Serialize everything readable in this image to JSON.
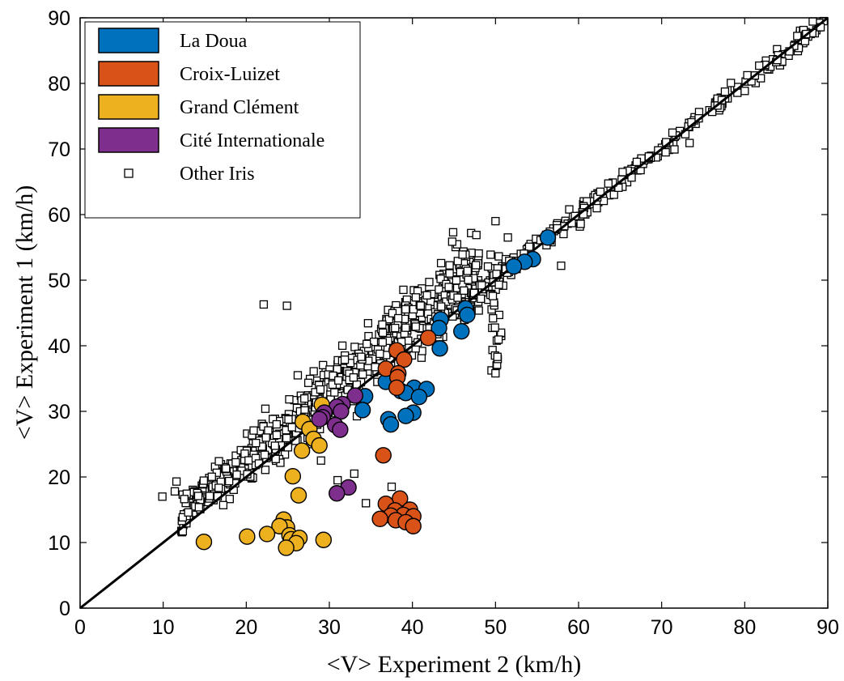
{
  "chart_data": {
    "type": "scatter",
    "title": "",
    "xlabel": "<V> Experiment 2 (km/h)",
    "ylabel": "<V> Experiment 1 (km/h)",
    "xlim": [
      0,
      90
    ],
    "ylim": [
      0,
      90
    ],
    "xticks": [
      0,
      10,
      20,
      30,
      40,
      50,
      60,
      70,
      80,
      90
    ],
    "yticks": [
      0,
      10,
      20,
      30,
      40,
      50,
      60,
      70,
      80,
      90
    ],
    "grid": false,
    "legend_position": "top-left",
    "identity_line": [
      [
        0,
        0
      ],
      [
        90,
        90
      ]
    ],
    "series": [
      {
        "name": "La Doua",
        "color": "#0072BD",
        "marker": "circle",
        "points": [
          [
            56.3,
            56.5
          ],
          [
            54.5,
            53.2
          ],
          [
            53.5,
            52.8
          ],
          [
            52.2,
            52.1
          ],
          [
            46.4,
            45.7
          ],
          [
            46.6,
            44.7
          ],
          [
            43.4,
            44.0
          ],
          [
            43.2,
            42.7
          ],
          [
            45.9,
            42.2
          ],
          [
            43.3,
            39.6
          ],
          [
            36.8,
            34.5
          ],
          [
            40.2,
            33.6
          ],
          [
            41.7,
            33.4
          ],
          [
            38.6,
            33.1
          ],
          [
            39.2,
            32.8
          ],
          [
            34.3,
            32.3
          ],
          [
            40.8,
            32.2
          ],
          [
            34.0,
            30.2
          ],
          [
            40.1,
            29.8
          ],
          [
            39.2,
            29.3
          ],
          [
            37.1,
            28.8
          ],
          [
            37.4,
            28.0
          ]
        ]
      },
      {
        "name": "Croix-Luizet",
        "color": "#D95319",
        "marker": "circle",
        "points": [
          [
            41.9,
            41.2
          ],
          [
            38.1,
            39.3
          ],
          [
            39.0,
            37.9
          ],
          [
            36.8,
            36.5
          ],
          [
            38.3,
            35.8
          ],
          [
            38.2,
            35.2
          ],
          [
            38.1,
            33.6
          ],
          [
            36.5,
            23.3
          ],
          [
            38.5,
            16.7
          ],
          [
            36.8,
            15.9
          ],
          [
            39.7,
            15.0
          ],
          [
            37.9,
            14.9
          ],
          [
            38.9,
            14.2
          ],
          [
            37.4,
            14.1
          ],
          [
            40.1,
            14.0
          ],
          [
            36.1,
            13.6
          ],
          [
            38.0,
            13.4
          ],
          [
            39.2,
            13.1
          ],
          [
            40.1,
            12.5
          ]
        ]
      },
      {
        "name": "Grand Clément",
        "color": "#EDB120",
        "marker": "circle",
        "points": [
          [
            29.1,
            31.0
          ],
          [
            26.8,
            28.4
          ],
          [
            27.6,
            27.3
          ],
          [
            28.1,
            25.8
          ],
          [
            28.8,
            24.8
          ],
          [
            26.7,
            24.0
          ],
          [
            25.6,
            20.1
          ],
          [
            26.3,
            17.2
          ],
          [
            24.5,
            13.5
          ],
          [
            24.9,
            12.3
          ],
          [
            24.0,
            12.5
          ],
          [
            22.5,
            11.3
          ],
          [
            20.1,
            10.9
          ],
          [
            25.2,
            11.1
          ],
          [
            25.4,
            10.5
          ],
          [
            26.4,
            10.7
          ],
          [
            29.3,
            10.4
          ],
          [
            14.9,
            10.1
          ],
          [
            26.0,
            9.9
          ],
          [
            24.8,
            9.2
          ]
        ]
      },
      {
        "name": "Cité Internationale",
        "color": "#7E2F8E",
        "marker": "circle",
        "points": [
          [
            33.1,
            32.4
          ],
          [
            31.6,
            31.1
          ],
          [
            30.9,
            30.7
          ],
          [
            31.4,
            30.0
          ],
          [
            29.4,
            29.8
          ],
          [
            29.2,
            29.1
          ],
          [
            28.8,
            28.8
          ],
          [
            30.7,
            27.9
          ],
          [
            31.3,
            27.2
          ],
          [
            32.3,
            18.4
          ],
          [
            30.9,
            17.5
          ]
        ]
      }
    ],
    "other_series": {
      "name": "Other Iris",
      "marker": "open-square",
      "color": "#000000"
    }
  }
}
